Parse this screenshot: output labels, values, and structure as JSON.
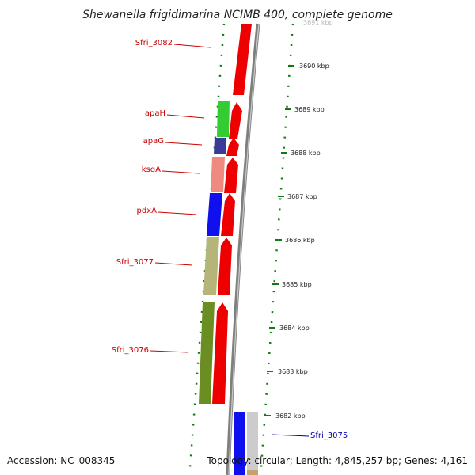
{
  "title": "Shewanella frigidimarina NCIMB 400, complete genome",
  "accession": "Accession: NC_008345",
  "topology": "Topology: circular; Length: 4,845,257 bp; Genes: 4,161",
  "scale_ticks": [
    "3691 kbp",
    "3690 kbp",
    "3689 kbp",
    "3688 kbp",
    "3687 kbp",
    "3686 kbp",
    "3685 kbp",
    "3684 kbp",
    "3683 kbp",
    "3682 kbp"
  ],
  "genes": [
    {
      "name": "Sfri_3082",
      "label_color": "#cc0000"
    },
    {
      "name": "apaH",
      "label_color": "#cc0000"
    },
    {
      "name": "apaG",
      "label_color": "#cc0000"
    },
    {
      "name": "ksgA",
      "label_color": "#cc0000"
    },
    {
      "name": "pdxA",
      "label_color": "#cc0000"
    },
    {
      "name": "Sfri_3077",
      "label_color": "#cc0000"
    },
    {
      "name": "Sfri_3076",
      "label_color": "#cc0000"
    },
    {
      "name": "Sfri_3075",
      "label_color": "#0000aa"
    }
  ],
  "colors": {
    "arrow_red": "#ee0000",
    "gene_green": "#33cc33",
    "gene_navy": "#3a3a99",
    "gene_pink": "#ee8a80",
    "gene_blue": "#1010ee",
    "gene_khaki": "#b5b57a",
    "gene_olive": "#6b8e23",
    "gene_gray": "#cccccc",
    "backbone": "#888888",
    "dotted_green": "#117a11"
  }
}
